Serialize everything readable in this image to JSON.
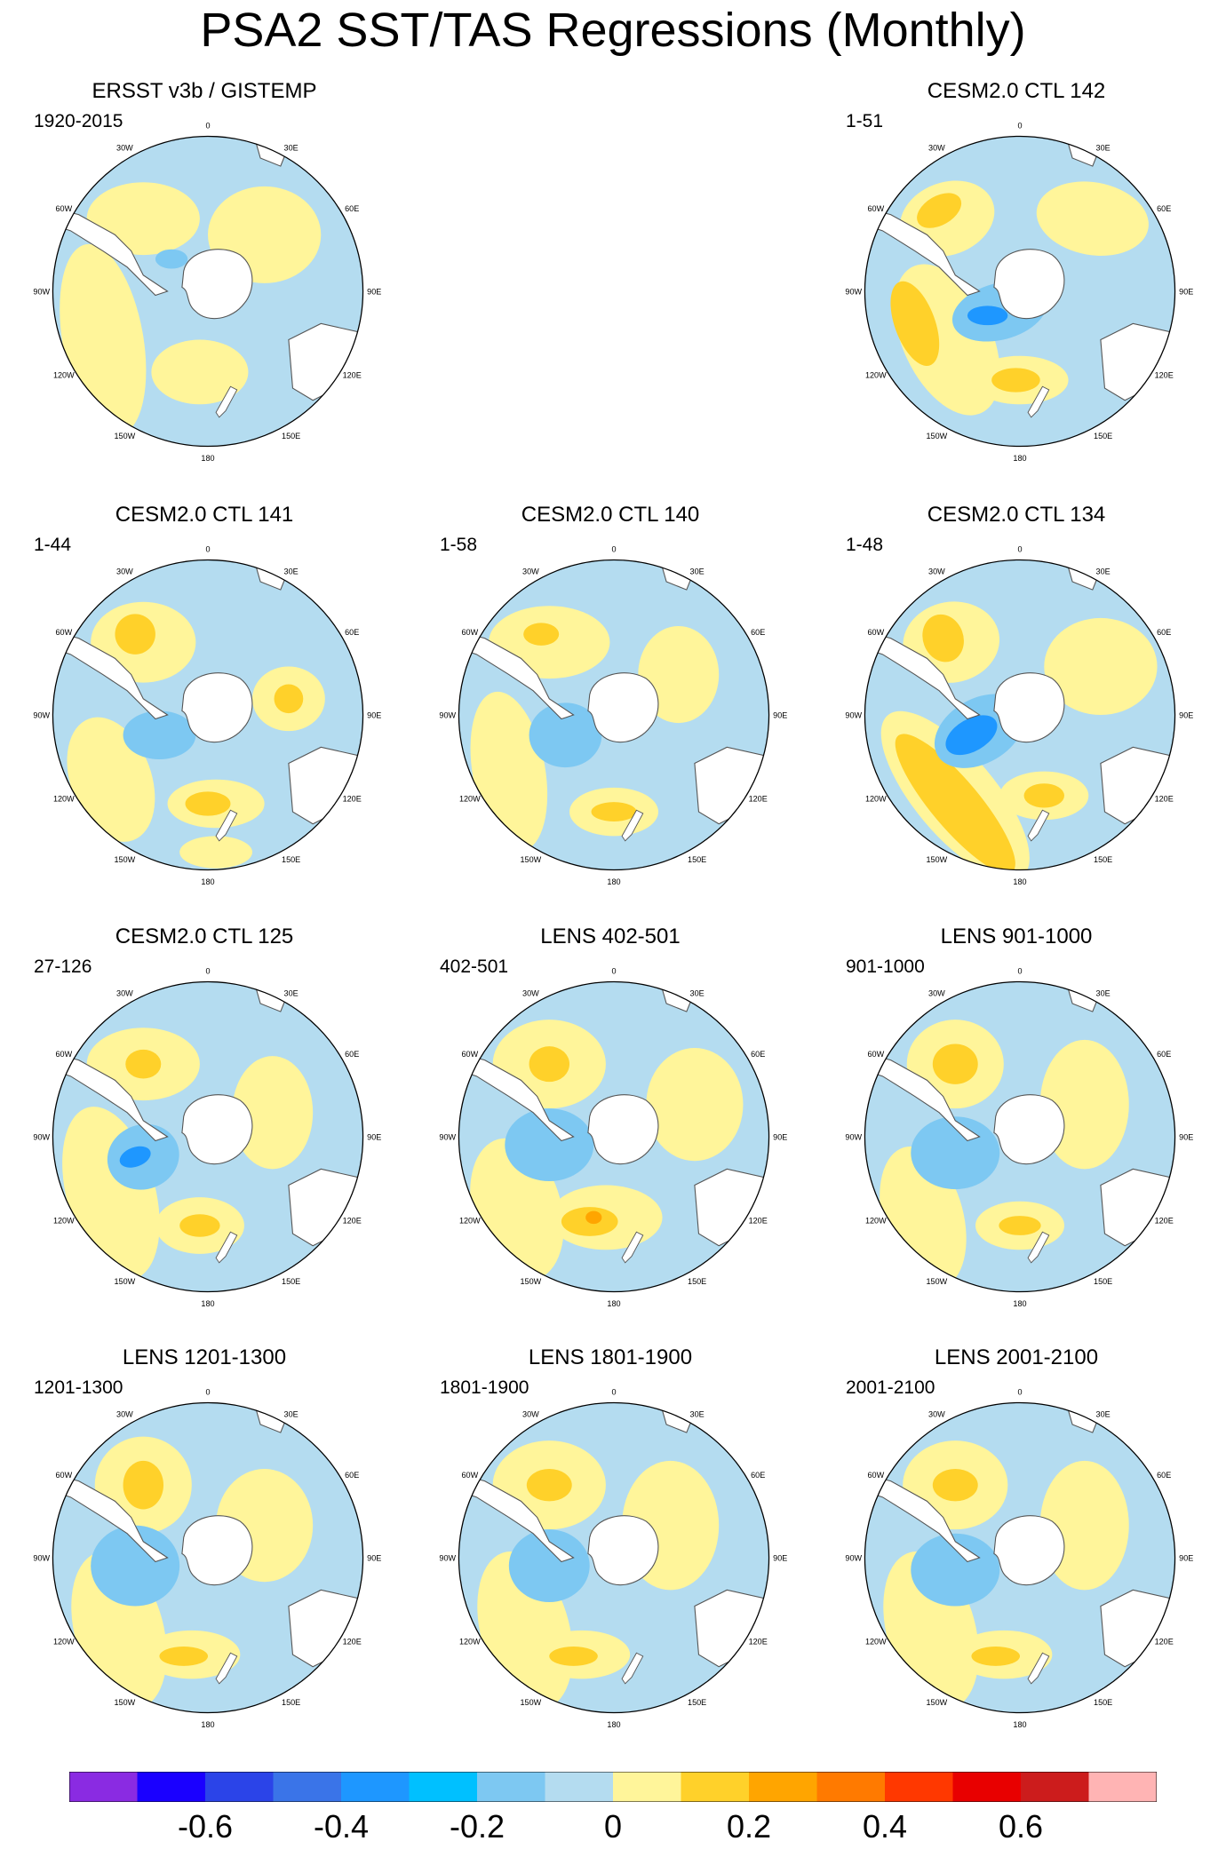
{
  "figure": {
    "title": "PSA2 SST/TAS Regressions (Monthly)",
    "colors": {
      "ocean_base": "#b4dcf0",
      "land": "#ffffff",
      "coast": "#555555",
      "outline": "#000000"
    },
    "lon_labels": [
      "0",
      "30E",
      "60E",
      "90E",
      "120E",
      "150E",
      "180",
      "150W",
      "120W",
      "90W",
      "60W",
      "30W"
    ]
  },
  "chart_data": {
    "type": "map",
    "projection": "south-polar-stereographic",
    "variable": "SST/TAS regression onto PSA2 index",
    "panels": [
      {
        "id": "ersst",
        "title": "ERSST v3b / GISTEMP",
        "range": "1920-2015",
        "position": "row1-left"
      },
      {
        "id": "ctl142",
        "title": "CESM2.0 CTL 142",
        "range": "1-51",
        "position": "row1-right"
      },
      {
        "id": "ctl141",
        "title": "CESM2.0 CTL 141",
        "range": "1-44",
        "position": "row2-left"
      },
      {
        "id": "ctl140",
        "title": "CESM2.0 CTL 140",
        "range": "1-58",
        "position": "row2-middle"
      },
      {
        "id": "ctl134",
        "title": "CESM2.0 CTL 134",
        "range": "1-48",
        "position": "row2-right"
      },
      {
        "id": "ctl125",
        "title": "CESM2.0 CTL 125",
        "range": "27-126",
        "position": "row3-left"
      },
      {
        "id": "lens402",
        "title": "LENS 402-501",
        "range": "402-501",
        "position": "row3-middle"
      },
      {
        "id": "lens901",
        "title": "LENS 901-1000",
        "range": "901-1000",
        "position": "row3-right"
      },
      {
        "id": "lens1201",
        "title": "LENS 1201-1300",
        "range": "1201-1300",
        "position": "row4-left"
      },
      {
        "id": "lens1801",
        "title": "LENS 1801-1900",
        "range": "1801-1900",
        "position": "row4-middle"
      },
      {
        "id": "lens2001",
        "title": "LENS 2001-2100",
        "range": "2001-2100",
        "position": "row4-right"
      }
    ],
    "colorbar": {
      "levels": [
        -0.7,
        -0.6,
        -0.5,
        -0.4,
        -0.3,
        -0.2,
        -0.1,
        0,
        0.1,
        0.2,
        0.3,
        0.4,
        0.5,
        0.6,
        0.7
      ],
      "colors": [
        "#8a2be2",
        "#1a00ff",
        "#2b44e8",
        "#3a74e8",
        "#1e97ff",
        "#00c0ff",
        "#7dc8f2",
        "#b4dcf0",
        "#fff59a",
        "#ffd12a",
        "#ffa500",
        "#ff7a00",
        "#ff3800",
        "#e80000",
        "#cc1c1c",
        "#ffb4b4"
      ],
      "tick_labels": [
        "-0.6",
        "-0.4",
        "-0.2",
        "0",
        "0.2",
        "0.4",
        "0.6"
      ],
      "tick_values": [
        -0.6,
        -0.4,
        -0.2,
        0,
        0.2,
        0.4,
        0.6
      ]
    }
  }
}
